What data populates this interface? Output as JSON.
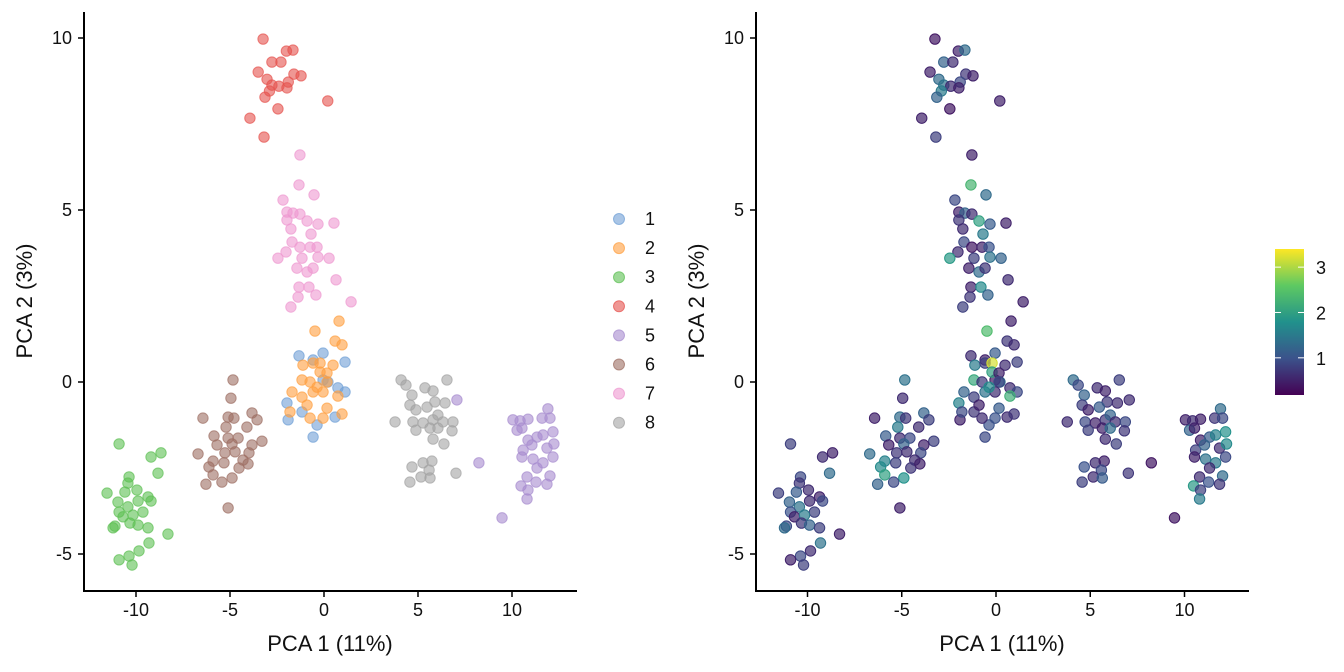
{
  "chart_data": [
    {
      "type": "scatter",
      "panel": "left",
      "title": "",
      "xlabel": "PCA 1 (11%)",
      "ylabel": "PCA 2 (3%)",
      "xlim": [
        -12.5,
        13.5
      ],
      "ylim": [
        -6.1,
        10.8
      ],
      "xticks": [
        -10,
        -5,
        0,
        5,
        10
      ],
      "xtick_labels": [
        "-10",
        "-5",
        "0",
        "5",
        "10"
      ],
      "yticks": [
        -5,
        0,
        5,
        10
      ],
      "ytick_labels": [
        "-5",
        "0",
        "5",
        "10"
      ],
      "grid": false,
      "legend": {
        "placement": "right",
        "entries": [
          "1",
          "2",
          "3",
          "4",
          "5",
          "6",
          "7",
          "8"
        ]
      },
      "color_by": "cluster"
    },
    {
      "type": "scatter",
      "panel": "right",
      "title": "",
      "xlabel": "PCA 1 (11%)",
      "ylabel": "PCA 2 (3%)",
      "xlim": [
        -12.5,
        13.5
      ],
      "ylim": [
        -6.1,
        10.8
      ],
      "xticks": [
        -10,
        -5,
        0,
        5,
        10
      ],
      "xtick_labels": [
        "-10",
        "-5",
        "0",
        "5",
        "10"
      ],
      "yticks": [
        -5,
        0,
        5,
        10
      ],
      "ytick_labels": [
        "-5",
        "0",
        "5",
        "10"
      ],
      "grid": false,
      "colorbar": {
        "placement": "right",
        "range": [
          0.18,
          3.4
        ],
        "ticks": [
          1,
          2,
          3
        ],
        "tick_labels": [
          "1",
          "2",
          "3"
        ],
        "palette": "viridis"
      },
      "color_by": "value (third coordinate)"
    }
  ],
  "cluster_colors": {
    "1": "#6f9fd6",
    "2": "#ff9f40",
    "3": "#5cbf52",
    "4": "#e5514d",
    "5": "#a78bcf",
    "6": "#9c6e62",
    "7": "#ee98d0",
    "8": "#a3a3a3"
  },
  "clusters": [
    {
      "id": "1",
      "points": [
        [
          -1.33,
          0.76,
          0.6
        ],
        [
          -0.05,
          0.84,
          1.1
        ],
        [
          -0.58,
          0.64,
          0.5
        ],
        [
          1.12,
          0.58,
          0.8
        ],
        [
          0.21,
          0.0,
          1.3
        ],
        [
          0.74,
          -0.17,
          0.6
        ],
        [
          1.12,
          -0.29,
          0.9
        ],
        [
          -1.97,
          -0.61,
          1.6
        ],
        [
          -1.17,
          -0.87,
          0.7
        ],
        [
          -1.91,
          -1.1,
          0.5
        ],
        [
          -0.37,
          -1.25,
          1.0
        ],
        [
          0.59,
          -1.02,
          0.6
        ],
        [
          -0.58,
          -1.6,
          0.9
        ],
        [
          -0.05,
          0.06,
          0.4
        ]
      ]
    },
    {
      "id": "2",
      "points": [
        [
          0.8,
          1.77,
          0.5
        ],
        [
          -0.48,
          1.48,
          2.4
        ],
        [
          0.59,
          1.19,
          0.7
        ],
        [
          0.96,
          1.08,
          0.6
        ],
        [
          -1.12,
          0.49,
          1.5
        ],
        [
          -0.58,
          0.55,
          0.8
        ],
        [
          -0.21,
          0.55,
          3.2
        ],
        [
          0.48,
          0.49,
          0.6
        ],
        [
          -0.21,
          0.29,
          2.0
        ],
        [
          0.16,
          0.26,
          0.5
        ],
        [
          -1.17,
          0.06,
          2.1
        ],
        [
          -0.74,
          0.0,
          0.7
        ],
        [
          0.16,
          0.0,
          0.9
        ],
        [
          -1.7,
          -0.29,
          1.2
        ],
        [
          -1.17,
          -0.44,
          0.8
        ],
        [
          -0.58,
          -0.29,
          1.4
        ],
        [
          -0.05,
          -0.29,
          0.6
        ],
        [
          0.74,
          -0.41,
          2.2
        ],
        [
          -0.9,
          -0.67,
          0.5
        ],
        [
          0.16,
          -0.76,
          1.1
        ],
        [
          -1.81,
          -0.87,
          0.9
        ],
        [
          -0.74,
          -1.05,
          0.6
        ],
        [
          -0.05,
          -1.05,
          1.0
        ],
        [
          0.96,
          -0.93,
          0.7
        ],
        [
          -0.37,
          -0.15,
          1.7
        ]
      ]
    },
    {
      "id": "3",
      "points": [
        [
          -10.9,
          -1.8,
          0.8
        ],
        [
          -9.2,
          -2.18,
          0.6
        ],
        [
          -8.67,
          -2.06,
          0.5
        ],
        [
          -8.83,
          -2.65,
          1.3
        ],
        [
          -10.37,
          -2.76,
          0.9
        ],
        [
          -10.43,
          -2.94,
          0.7
        ],
        [
          -10.59,
          -3.2,
          1.1
        ],
        [
          -11.54,
          -3.23,
          0.8
        ],
        [
          -9.95,
          -3.14,
          0.6
        ],
        [
          -9.36,
          -3.34,
          0.5
        ],
        [
          -9.2,
          -3.46,
          0.9
        ],
        [
          -10.96,
          -3.49,
          1.2
        ],
        [
          -9.89,
          -3.46,
          0.6
        ],
        [
          -10.43,
          -3.63,
          1.4
        ],
        [
          -9.63,
          -3.78,
          0.8
        ],
        [
          -10.9,
          -3.78,
          1.0
        ],
        [
          -10.69,
          -3.92,
          0.5
        ],
        [
          -10.16,
          -3.87,
          1.5
        ],
        [
          -10.32,
          -4.1,
          0.7
        ],
        [
          -9.89,
          -4.16,
          1.2
        ],
        [
          -11.12,
          -4.19,
          0.9
        ],
        [
          -11.22,
          -4.24,
          1.3
        ],
        [
          -9.36,
          -4.24,
          0.8
        ],
        [
          -8.3,
          -4.42,
          0.5
        ],
        [
          -9.31,
          -4.68,
          1.4
        ],
        [
          -9.84,
          -4.91,
          0.6
        ],
        [
          -10.37,
          -5.06,
          0.9
        ],
        [
          -10.9,
          -5.17,
          0.5
        ],
        [
          -10.21,
          -5.32,
          0.8
        ]
      ]
    },
    {
      "id": "4",
      "points": [
        [
          -3.24,
          9.97,
          0.4
        ],
        [
          -2.0,
          9.62,
          0.5
        ],
        [
          -1.65,
          9.65,
          1.3
        ],
        [
          -2.77,
          9.3,
          1.2
        ],
        [
          -2.29,
          9.3,
          0.6
        ],
        [
          -3.5,
          9.01,
          0.5
        ],
        [
          -3.03,
          8.8,
          1.3
        ],
        [
          -1.6,
          8.95,
          0.7
        ],
        [
          -1.22,
          8.9,
          0.5
        ],
        [
          -2.77,
          8.63,
          1.4
        ],
        [
          -2.4,
          8.6,
          0.6
        ],
        [
          -1.9,
          8.72,
          0.9
        ],
        [
          -1.97,
          8.55,
          0.5
        ],
        [
          -2.9,
          8.46,
          1.5
        ],
        [
          -3.14,
          8.28,
          1.2
        ],
        [
          0.2,
          8.17,
          0.5
        ],
        [
          -2.45,
          7.94,
          0.4
        ],
        [
          -3.94,
          7.67,
          0.5
        ],
        [
          -3.19,
          7.12,
          0.8
        ]
      ]
    },
    {
      "id": "5",
      "points": [
        [
          7.07,
          -0.52,
          0.6
        ],
        [
          8.24,
          -2.35,
          0.4
        ],
        [
          9.47,
          -3.95,
          0.4
        ],
        [
          10.05,
          -1.1,
          0.5
        ],
        [
          10.43,
          -1.13,
          0.6
        ],
        [
          10.85,
          -1.08,
          0.5
        ],
        [
          10.27,
          -1.4,
          1.2
        ],
        [
          10.53,
          -1.34,
          0.5
        ],
        [
          11.6,
          -1.05,
          0.7
        ],
        [
          11.91,
          -0.78,
          1.3
        ],
        [
          12.02,
          -1.05,
          0.9
        ],
        [
          12.18,
          -1.45,
          1.8
        ],
        [
          10.85,
          -1.69,
          0.5
        ],
        [
          11.33,
          -1.6,
          1.1
        ],
        [
          11.65,
          -1.54,
          1.6
        ],
        [
          10.59,
          -1.98,
          0.8
        ],
        [
          11.06,
          -1.83,
          1.2
        ],
        [
          11.86,
          -1.92,
          0.6
        ],
        [
          12.23,
          -1.8,
          1.7
        ],
        [
          10.53,
          -2.18,
          0.5
        ],
        [
          11.12,
          -2.24,
          1.4
        ],
        [
          12.18,
          -2.18,
          0.9
        ],
        [
          11.65,
          -2.35,
          1.5
        ],
        [
          11.33,
          -2.5,
          0.6
        ],
        [
          12.02,
          -2.73,
          1.3
        ],
        [
          10.8,
          -2.76,
          0.6
        ],
        [
          11.28,
          -2.91,
          1.0
        ],
        [
          11.86,
          -2.97,
          0.7
        ],
        [
          10.48,
          -3.02,
          1.9
        ],
        [
          10.85,
          -3.14,
          0.8
        ],
        [
          10.8,
          -3.4,
          1.5
        ]
      ]
    },
    {
      "id": "6",
      "points": [
        [
          -4.84,
          0.06,
          1.4
        ],
        [
          -4.95,
          -0.47,
          0.6
        ],
        [
          -6.44,
          -1.05,
          0.5
        ],
        [
          -5.1,
          -1.02,
          1.3
        ],
        [
          -4.79,
          -1.05,
          0.7
        ],
        [
          -3.83,
          -0.9,
          1.2
        ],
        [
          -3.56,
          -1.1,
          0.8
        ],
        [
          -5.21,
          -1.31,
          1.5
        ],
        [
          -4.1,
          -1.31,
          0.6
        ],
        [
          -5.85,
          -1.57,
          1.1
        ],
        [
          -5.1,
          -1.63,
          0.6
        ],
        [
          -4.57,
          -1.63,
          0.9
        ],
        [
          -5.69,
          -1.83,
          0.5
        ],
        [
          -4.89,
          -1.8,
          1.2
        ],
        [
          -3.3,
          -1.72,
          0.8
        ],
        [
          -3.83,
          -1.83,
          0.5
        ],
        [
          -6.7,
          -2.09,
          1.3
        ],
        [
          -5.27,
          -2.06,
          0.7
        ],
        [
          -4.73,
          -2.03,
          0.6
        ],
        [
          -3.99,
          -2.06,
          0.9
        ],
        [
          -5.9,
          -2.3,
          1.6
        ],
        [
          -5.32,
          -2.35,
          0.8
        ],
        [
          -4.31,
          -2.27,
          0.6
        ],
        [
          -6.12,
          -2.47,
          1.7
        ],
        [
          -4.52,
          -2.5,
          0.7
        ],
        [
          -4.04,
          -2.38,
          0.5
        ],
        [
          -5.9,
          -2.7,
          2.0
        ],
        [
          -4.89,
          -2.79,
          1.8
        ],
        [
          -5.43,
          -2.91,
          0.9
        ],
        [
          -6.28,
          -2.97,
          1.2
        ],
        [
          -5.1,
          -3.66,
          0.5
        ]
      ]
    },
    {
      "id": "7",
      "points": [
        [
          -1.28,
          6.6,
          0.5
        ],
        [
          -1.33,
          5.73,
          2.3
        ],
        [
          -0.53,
          5.44,
          1.3
        ],
        [
          -2.18,
          5.29,
          0.9
        ],
        [
          -1.97,
          4.94,
          0.5
        ],
        [
          -1.65,
          4.91,
          1.2
        ],
        [
          -1.28,
          4.88,
          0.6
        ],
        [
          -0.9,
          4.68,
          2.0
        ],
        [
          -0.32,
          4.59,
          1.1
        ],
        [
          0.53,
          4.62,
          0.5
        ],
        [
          -1.97,
          4.71,
          0.7
        ],
        [
          -1.76,
          4.45,
          0.6
        ],
        [
          -0.69,
          4.3,
          1.5
        ],
        [
          -1.7,
          4.07,
          0.9
        ],
        [
          -1.28,
          3.92,
          0.4
        ],
        [
          -0.74,
          3.92,
          0.5
        ],
        [
          -0.37,
          3.92,
          1.0
        ],
        [
          -2.02,
          3.78,
          0.6
        ],
        [
          -2.45,
          3.6,
          1.9
        ],
        [
          -1.17,
          3.6,
          0.8
        ],
        [
          -0.32,
          3.63,
          1.4
        ],
        [
          0.27,
          3.6,
          1.2
        ],
        [
          -1.44,
          3.31,
          0.5
        ],
        [
          -0.9,
          3.2,
          1.3
        ],
        [
          -0.58,
          3.31,
          0.7
        ],
        [
          0.64,
          2.97,
          0.6
        ],
        [
          -1.33,
          2.76,
          0.5
        ],
        [
          -0.8,
          2.76,
          1.7
        ],
        [
          -0.43,
          2.53,
          1.2
        ],
        [
          -1.38,
          2.47,
          0.7
        ],
        [
          -1.76,
          2.18,
          0.8
        ],
        [
          1.44,
          2.33,
          0.5
        ]
      ]
    },
    {
      "id": "8",
      "points": [
        [
          4.1,
          0.06,
          1.3
        ],
        [
          4.36,
          -0.09,
          0.9
        ],
        [
          6.54,
          0.06,
          0.8
        ],
        [
          5.37,
          -0.17,
          0.6
        ],
        [
          5.8,
          -0.26,
          0.5
        ],
        [
          4.68,
          -0.38,
          1.2
        ],
        [
          5.9,
          -0.58,
          0.7
        ],
        [
          6.44,
          -0.61,
          0.6
        ],
        [
          4.57,
          -0.67,
          0.8
        ],
        [
          5.48,
          -0.73,
          1.1
        ],
        [
          4.89,
          -0.81,
          0.5
        ],
        [
          3.78,
          -1.16,
          0.6
        ],
        [
          4.73,
          -1.16,
          0.9
        ],
        [
          5.27,
          -1.19,
          0.5
        ],
        [
          5.8,
          -1.1,
          0.7
        ],
        [
          6.06,
          -0.96,
          1.2
        ],
        [
          6.33,
          -1.16,
          0.6
        ],
        [
          6.86,
          -1.16,
          0.9
        ],
        [
          4.89,
          -1.4,
          0.8
        ],
        [
          5.64,
          -1.34,
          0.5
        ],
        [
          6.06,
          -1.34,
          1.3
        ],
        [
          6.81,
          -1.42,
          0.7
        ],
        [
          5.8,
          -1.66,
          0.6
        ],
        [
          6.38,
          -1.8,
          0.8
        ],
        [
          4.68,
          -2.47,
          1.0
        ],
        [
          5.27,
          -2.35,
          0.6
        ],
        [
          5.74,
          -2.3,
          0.5
        ],
        [
          5.59,
          -2.56,
          0.9
        ],
        [
          7.02,
          -2.65,
          0.7
        ],
        [
          4.57,
          -2.91,
          0.8
        ],
        [
          5.16,
          -2.76,
          0.6
        ],
        [
          5.64,
          -2.79,
          1.1
        ]
      ]
    }
  ]
}
